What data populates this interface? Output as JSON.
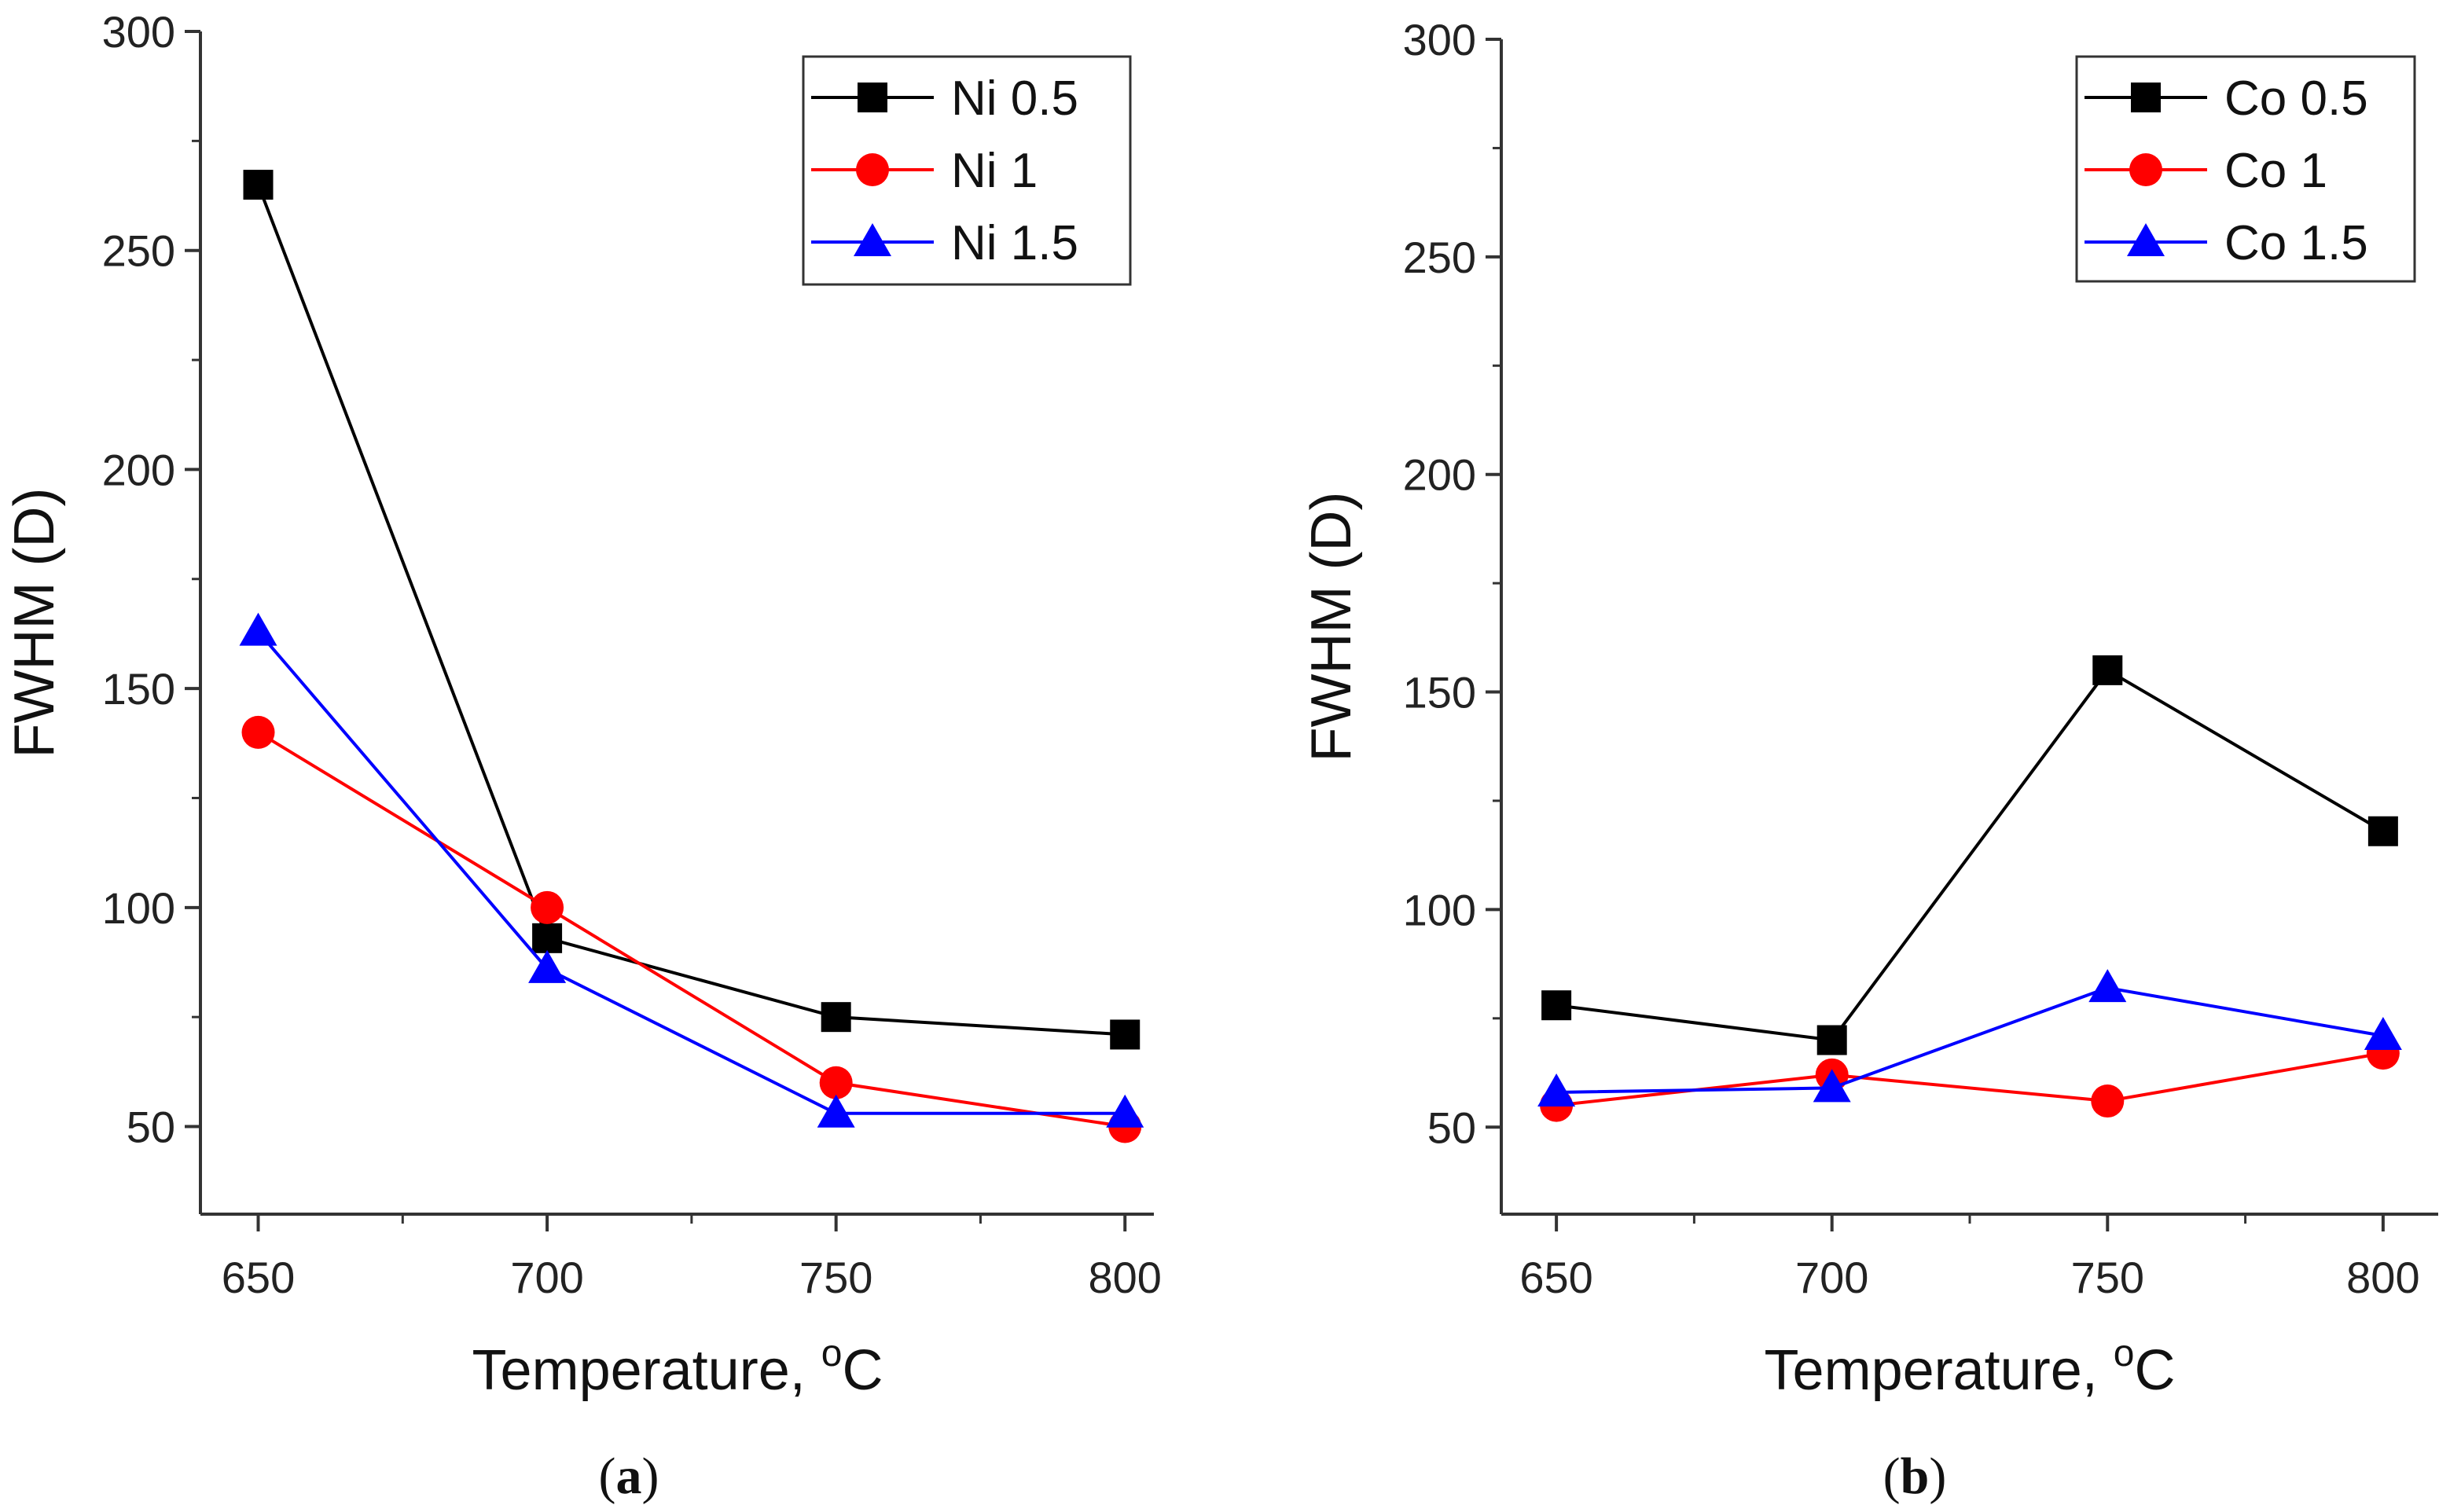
{
  "chart_data": [
    {
      "type": "line",
      "panel_label": "a",
      "title": "",
      "xlabel": "Temperature, ",
      "xlabel_unit_sup": "o",
      "xlabel_unit": "C",
      "ylabel": "FWHM (D)",
      "x": [
        650,
        700,
        750,
        800
      ],
      "xticks": [
        "650",
        "700",
        "750",
        "800"
      ],
      "xlim": [
        640,
        805
      ],
      "ylim": [
        30,
        300
      ],
      "yticks": [
        "50",
        "100",
        "150",
        "200",
        "250",
        "300"
      ],
      "grid": false,
      "legend_position": "top-right",
      "series": [
        {
          "name": "Ni 0.5",
          "marker": "square",
          "color": "#000000",
          "values": [
            265,
            93,
            75,
            71
          ]
        },
        {
          "name": "Ni 1",
          "marker": "circle",
          "color": "#ff0000",
          "values": [
            140,
            100,
            60,
            50
          ]
        },
        {
          "name": "Ni 1.5",
          "marker": "triangle",
          "color": "#0000ff",
          "values": [
            163,
            86,
            53,
            53
          ]
        }
      ]
    },
    {
      "type": "line",
      "panel_label": "b",
      "title": "",
      "xlabel": "Temperature, ",
      "xlabel_unit_sup": "o",
      "xlabel_unit": "C",
      "ylabel": "FWHM (D)",
      "x": [
        650,
        700,
        750,
        800
      ],
      "xticks": [
        "650",
        "700",
        "750",
        "800"
      ],
      "xlim": [
        640,
        810
      ],
      "ylim": [
        30,
        300
      ],
      "yticks": [
        "50",
        "100",
        "150",
        "200",
        "250",
        "300"
      ],
      "grid": false,
      "legend_position": "top-right",
      "series": [
        {
          "name": "Co 0.5",
          "marker": "square",
          "color": "#000000",
          "values": [
            78,
            70,
            155,
            118
          ]
        },
        {
          "name": "Co 1",
          "marker": "circle",
          "color": "#ff0000",
          "values": [
            55,
            62,
            56,
            67
          ]
        },
        {
          "name": "Co 1.5",
          "marker": "triangle",
          "color": "#0000ff",
          "values": [
            58,
            59,
            82,
            71
          ]
        }
      ]
    }
  ]
}
